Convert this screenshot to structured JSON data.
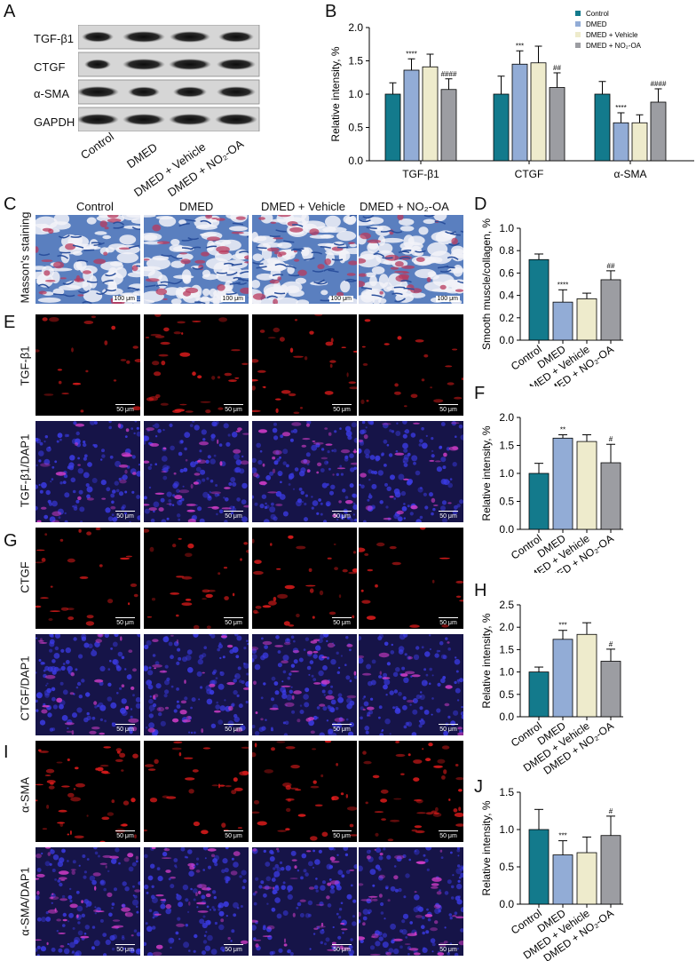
{
  "panels": {
    "A": "A",
    "B": "B",
    "C": "C",
    "D": "D",
    "E": "E",
    "F": "F",
    "G": "G",
    "H": "H",
    "I": "I",
    "J": "J"
  },
  "blot": {
    "rows": [
      "TGF-β1",
      "CTGF",
      "α-SMA",
      "GAPDH"
    ],
    "lanes": [
      "Control",
      "DMED",
      "DMED + Vehicle",
      "DMED + NO₂-OA"
    ]
  },
  "micro": {
    "groups": [
      "Control",
      "DMED",
      "DMED + Vehicle",
      "DMED + NO₂-OA"
    ],
    "masson_label": "Masson's staining",
    "masson_scale": "100 μm",
    "fluor_scale": "50 μm",
    "row_labels": {
      "tgf": "TGF-β1",
      "tgf_dapi": "TGF-β1/DAP1",
      "ctgf": "CTGF",
      "ctgf_dapi": "CTGF/DAP1",
      "sma": "α-SMA",
      "sma_dapi": "α-SMA/DAP1"
    }
  },
  "colors": {
    "Control": "#137a8c",
    "DMED": "#92acd6",
    "DMED + Vehicle": "#eeebcc",
    "DMED + NO₂-OA": "#9c9da2"
  },
  "chart_data": [
    {
      "panel": "B",
      "type": "bar",
      "categories": [
        "TGF-β1",
        "CTGF",
        "α-SMA"
      ],
      "ylabel": "Relative intensity, %",
      "ylim": [
        0,
        2.0
      ],
      "yticks": [
        "0.0",
        "0.5",
        "1.0",
        "1.5",
        "2.0"
      ],
      "legend_position": "top-right",
      "series": [
        {
          "name": "Control",
          "values": [
            1.0,
            1.0,
            1.0
          ],
          "err": [
            0.17,
            0.27,
            0.19
          ],
          "sig": [
            "",
            "",
            ""
          ]
        },
        {
          "name": "DMED",
          "values": [
            1.36,
            1.45,
            0.57
          ],
          "err": [
            0.17,
            0.2,
            0.15
          ],
          "sig": [
            "****",
            "***",
            "****"
          ]
        },
        {
          "name": "DMED + Vehicle",
          "values": [
            1.41,
            1.47,
            0.57
          ],
          "err": [
            0.19,
            0.25,
            0.12
          ],
          "sig": [
            "",
            "",
            ""
          ]
        },
        {
          "name": "DMED + NO₂-OA",
          "values": [
            1.07,
            1.1,
            0.88
          ],
          "err": [
            0.16,
            0.22,
            0.2
          ],
          "sig": [
            "####",
            "##",
            "####"
          ]
        }
      ]
    },
    {
      "panel": "D",
      "type": "bar",
      "categories": [
        "Control",
        "DMED",
        "DMED + Vehicle",
        "DMED + NO₂-OA"
      ],
      "ylabel": "Smooth muscle/collagen, %",
      "ylim": [
        0,
        1.0
      ],
      "yticks": [
        "0.0",
        "0.2",
        "0.4",
        "0.6",
        "0.8",
        "1.0"
      ],
      "values": [
        0.72,
        0.34,
        0.37,
        0.54
      ],
      "err": [
        0.05,
        0.11,
        0.05,
        0.08
      ],
      "sig": [
        "",
        "****",
        "",
        "##"
      ]
    },
    {
      "panel": "F",
      "type": "bar",
      "categories": [
        "Control",
        "DMED",
        "DMED + Vehicle",
        "DMED + NO₂-OA"
      ],
      "ylabel": "Relative intensity, %",
      "ylim": [
        0,
        2.0
      ],
      "yticks": [
        "0.0",
        "0.5",
        "1.0",
        "1.5",
        "2.0"
      ],
      "values": [
        1.0,
        1.63,
        1.57,
        1.19
      ],
      "err": [
        0.18,
        0.06,
        0.12,
        0.33
      ],
      "sig": [
        "",
        "**",
        "",
        "#"
      ]
    },
    {
      "panel": "H",
      "type": "bar",
      "categories": [
        "Control",
        "DMED",
        "DMED + Vehicle",
        "DMED + NO₂-OA"
      ],
      "ylabel": "Relative intensity, %",
      "ylim": [
        0,
        2.5
      ],
      "yticks": [
        "0.0",
        "0.5",
        "1.0",
        "1.5",
        "2.0",
        "2.5"
      ],
      "values": [
        1.0,
        1.73,
        1.84,
        1.24
      ],
      "err": [
        0.11,
        0.2,
        0.26,
        0.27
      ],
      "sig": [
        "",
        "***",
        "",
        "#"
      ]
    },
    {
      "panel": "J",
      "type": "bar",
      "categories": [
        "Control",
        "DMED",
        "DMED + Vehicle",
        "DMED + NO₂-OA"
      ],
      "ylabel": "Relative intensity, %",
      "ylim": [
        0,
        1.5
      ],
      "yticks": [
        "0.0",
        "0.5",
        "1.0",
        "1.5"
      ],
      "values": [
        1.0,
        0.66,
        0.69,
        0.92
      ],
      "err": [
        0.27,
        0.19,
        0.21,
        0.26
      ],
      "sig": [
        "",
        "***",
        "",
        "#"
      ]
    }
  ]
}
